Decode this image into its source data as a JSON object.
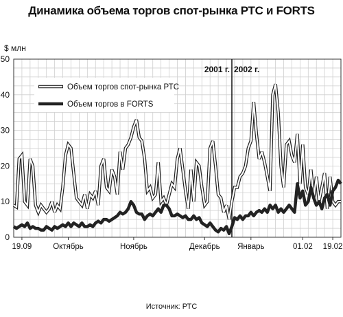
{
  "chart_data": {
    "type": "line",
    "title": "Динамика объема торгов спот-рынка РТС и FORTS",
    "ylabel": "$ млн",
    "ylim": [
      0,
      50
    ],
    "yticks": [
      0,
      10,
      20,
      30,
      40,
      50
    ],
    "grid": true,
    "legend_position": "top-left",
    "xlim": [
      0,
      120
    ],
    "xticks": [
      {
        "label": "19.09",
        "x": 3
      },
      {
        "label": "Октябрь",
        "x": 20
      },
      {
        "label": "Ноябрь",
        "x": 44
      },
      {
        "label": "Декабрь",
        "x": 70
      },
      {
        "label": "Январь",
        "x": 87
      },
      {
        "label": "01.02",
        "x": 106
      },
      {
        "label": "19.02",
        "x": 117
      }
    ],
    "annotations": [
      {
        "text": "2001 г.",
        "x": 80,
        "side": "left"
      },
      {
        "text": "2002 г.",
        "x": 80,
        "side": "right"
      }
    ],
    "series": [
      {
        "name": "Объем торгов спот-рынка РТС",
        "style": "outline",
        "color": "#222222",
        "points": [
          [
            0,
            9
          ],
          [
            1,
            8.5
          ],
          [
            2,
            22
          ],
          [
            3,
            23
          ],
          [
            4,
            10
          ],
          [
            5,
            9
          ],
          [
            6,
            22
          ],
          [
            7,
            20
          ],
          [
            8,
            9
          ],
          [
            9,
            7
          ],
          [
            10,
            9
          ],
          [
            11,
            8
          ],
          [
            12,
            7
          ],
          [
            13,
            8
          ],
          [
            14,
            10
          ],
          [
            15,
            7
          ],
          [
            16,
            9
          ],
          [
            17,
            8
          ],
          [
            18,
            14
          ],
          [
            19,
            23
          ],
          [
            20,
            26
          ],
          [
            21,
            25
          ],
          [
            22,
            18
          ],
          [
            23,
            11
          ],
          [
            24,
            10
          ],
          [
            25,
            9
          ],
          [
            26,
            12
          ],
          [
            27,
            8
          ],
          [
            28,
            12
          ],
          [
            29,
            11
          ],
          [
            30,
            13
          ],
          [
            31,
            9
          ],
          [
            32,
            20
          ],
          [
            33,
            22
          ],
          [
            34,
            14
          ],
          [
            35,
            13
          ],
          [
            36,
            19
          ],
          [
            37,
            17
          ],
          [
            38,
            12
          ],
          [
            39,
            24
          ],
          [
            40,
            19
          ],
          [
            41,
            25
          ],
          [
            42,
            26
          ],
          [
            43,
            28
          ],
          [
            44,
            31
          ],
          [
            45,
            33
          ],
          [
            46,
            28
          ],
          [
            47,
            27
          ],
          [
            48,
            22
          ],
          [
            49,
            13
          ],
          [
            50,
            14
          ],
          [
            51,
            11
          ],
          [
            52,
            12
          ],
          [
            53,
            21
          ],
          [
            54,
            10
          ],
          [
            55,
            11
          ],
          [
            56,
            9
          ],
          [
            57,
            12
          ],
          [
            58,
            15
          ],
          [
            59,
            14
          ],
          [
            60,
            22
          ],
          [
            61,
            25
          ],
          [
            62,
            19
          ],
          [
            63,
            13
          ],
          [
            64,
            8
          ],
          [
            65,
            19
          ],
          [
            66,
            10
          ],
          [
            67,
            21
          ],
          [
            68,
            20
          ],
          [
            69,
            14
          ],
          [
            70,
            9
          ],
          [
            71,
            10
          ],
          [
            72,
            25
          ],
          [
            73,
            27
          ],
          [
            74,
            20
          ],
          [
            75,
            12
          ],
          [
            76,
            11
          ],
          [
            77,
            7
          ],
          [
            78,
            9
          ],
          [
            79,
            5
          ],
          [
            80,
            10
          ],
          [
            81,
            14
          ],
          [
            82,
            14
          ],
          [
            83,
            17
          ],
          [
            84,
            18
          ],
          [
            85,
            20
          ],
          [
            86,
            25
          ],
          [
            87,
            27
          ],
          [
            88,
            38
          ],
          [
            89,
            29
          ],
          [
            90,
            22
          ],
          [
            91,
            24
          ],
          [
            92,
            21
          ],
          [
            93,
            17
          ],
          [
            94,
            13
          ],
          [
            95,
            40
          ],
          [
            96,
            43
          ],
          [
            97,
            35
          ],
          [
            98,
            20
          ],
          [
            99,
            14
          ],
          [
            100,
            26
          ],
          [
            101,
            27
          ],
          [
            102,
            23
          ],
          [
            103,
            21
          ],
          [
            104,
            29
          ],
          [
            105,
            15
          ],
          [
            106,
            26
          ],
          [
            107,
            14
          ],
          [
            108,
            12
          ],
          [
            109,
            19
          ],
          [
            110,
            11
          ],
          [
            111,
            17
          ],
          [
            112,
            10
          ],
          [
            113,
            14
          ],
          [
            114,
            18
          ],
          [
            115,
            8
          ],
          [
            116,
            17
          ],
          [
            117,
            10
          ],
          [
            118,
            9
          ],
          [
            119,
            10
          ],
          [
            120,
            10
          ]
        ]
      },
      {
        "name": "Объем торгов в FORTS",
        "style": "bold",
        "color": "#222222",
        "points": [
          [
            0,
            3
          ],
          [
            1,
            2.5
          ],
          [
            2,
            3
          ],
          [
            3,
            3.5
          ],
          [
            4,
            3
          ],
          [
            5,
            4
          ],
          [
            6,
            2.5
          ],
          [
            7,
            3
          ],
          [
            8,
            2.5
          ],
          [
            9,
            2.5
          ],
          [
            10,
            2
          ],
          [
            11,
            2
          ],
          [
            12,
            3
          ],
          [
            13,
            2.5
          ],
          [
            14,
            2
          ],
          [
            15,
            3
          ],
          [
            16,
            2.5
          ],
          [
            17,
            3
          ],
          [
            18,
            3.5
          ],
          [
            19,
            3
          ],
          [
            20,
            4
          ],
          [
            21,
            3
          ],
          [
            22,
            4
          ],
          [
            23,
            3.5
          ],
          [
            24,
            3
          ],
          [
            25,
            4
          ],
          [
            26,
            3
          ],
          [
            27,
            3
          ],
          [
            28,
            3.5
          ],
          [
            29,
            3
          ],
          [
            30,
            4
          ],
          [
            31,
            4.5
          ],
          [
            32,
            4
          ],
          [
            33,
            5
          ],
          [
            34,
            5
          ],
          [
            35,
            4.5
          ],
          [
            36,
            5
          ],
          [
            37,
            5.5
          ],
          [
            38,
            6
          ],
          [
            39,
            7
          ],
          [
            40,
            6.5
          ],
          [
            41,
            7
          ],
          [
            42,
            8
          ],
          [
            43,
            10
          ],
          [
            44,
            9
          ],
          [
            45,
            7
          ],
          [
            46,
            6.5
          ],
          [
            47,
            6.5
          ],
          [
            48,
            5
          ],
          [
            49,
            6
          ],
          [
            50,
            6.5
          ],
          [
            51,
            6
          ],
          [
            52,
            7
          ],
          [
            53,
            8
          ],
          [
            54,
            7
          ],
          [
            55,
            9
          ],
          [
            56,
            9
          ],
          [
            57,
            8
          ],
          [
            58,
            6
          ],
          [
            59,
            6
          ],
          [
            60,
            6.5
          ],
          [
            61,
            6
          ],
          [
            62,
            5.5
          ],
          [
            63,
            6
          ],
          [
            64,
            5
          ],
          [
            65,
            5
          ],
          [
            66,
            6
          ],
          [
            67,
            5
          ],
          [
            68,
            5.5
          ],
          [
            69,
            4
          ],
          [
            70,
            3.5
          ],
          [
            71,
            3
          ],
          [
            72,
            4
          ],
          [
            73,
            3
          ],
          [
            74,
            2
          ],
          [
            75,
            1.5
          ],
          [
            76,
            2.5
          ],
          [
            77,
            2
          ],
          [
            78,
            3
          ],
          [
            79,
            1
          ],
          [
            80,
            3
          ],
          [
            81,
            5.5
          ],
          [
            82,
            5
          ],
          [
            83,
            6
          ],
          [
            84,
            5
          ],
          [
            85,
            6
          ],
          [
            86,
            6
          ],
          [
            87,
            7
          ],
          [
            88,
            6
          ],
          [
            89,
            7
          ],
          [
            90,
            7.5
          ],
          [
            91,
            7
          ],
          [
            92,
            8
          ],
          [
            93,
            7
          ],
          [
            94,
            9
          ],
          [
            95,
            8
          ],
          [
            96,
            9
          ],
          [
            97,
            7
          ],
          [
            98,
            8
          ],
          [
            99,
            7
          ],
          [
            100,
            8
          ],
          [
            101,
            9
          ],
          [
            102,
            8
          ],
          [
            103,
            7
          ],
          [
            104,
            15
          ],
          [
            105,
            11
          ],
          [
            106,
            13
          ],
          [
            107,
            9
          ],
          [
            108,
            10
          ],
          [
            109,
            14
          ],
          [
            110,
            11
          ],
          [
            111,
            9
          ],
          [
            112,
            10
          ],
          [
            113,
            8
          ],
          [
            114,
            11
          ],
          [
            115,
            12
          ],
          [
            116,
            9
          ],
          [
            117,
            13
          ],
          [
            118,
            14
          ],
          [
            119,
            16
          ],
          [
            120,
            15
          ]
        ]
      }
    ]
  },
  "source": "Источник: РТС"
}
